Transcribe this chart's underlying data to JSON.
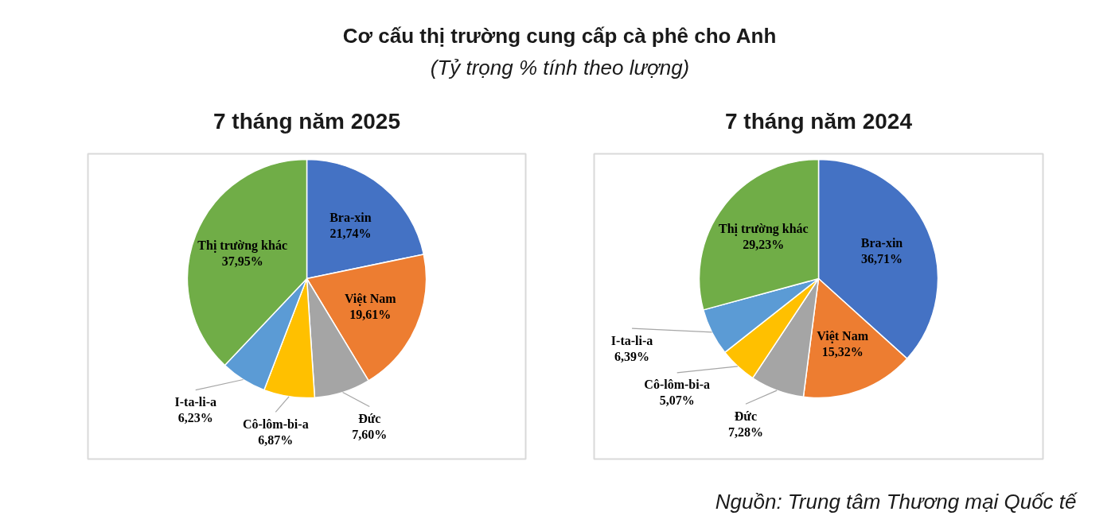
{
  "chart_data": [
    {
      "type": "other",
      "title": "Cơ cấu thị trường cung cấp cà phê cho Anh",
      "subtitle": "(Tỷ trọng % tính theo lượng)",
      "annotations": [
        "Nguồn: Trung tâm Thương mại Quốc tế"
      ]
    },
    {
      "type": "pie",
      "title": "7 tháng năm 2025",
      "categories": [
        "Bra-xin",
        "Việt Nam",
        "Đức",
        "Cô-lôm-bi-a",
        "I-ta-li-a",
        "Thị trường khác"
      ],
      "values": [
        21.74,
        19.61,
        7.6,
        6.87,
        6.23,
        37.95
      ],
      "colors": [
        "#4472c4",
        "#ed7d31",
        "#a5a5a5",
        "#ffc000",
        "#5b9bd5",
        "#70ad47"
      ],
      "value_labels": [
        "21,74%",
        "19,61%",
        "7,60%",
        "6,87%",
        "6,23%",
        "37,95%"
      ]
    },
    {
      "type": "pie",
      "title": "7 tháng năm 2024",
      "categories": [
        "Bra-xin",
        "Việt Nam",
        "Đức",
        "Cô-lôm-bi-a",
        "I-ta-li-a",
        "Thị trường khác"
      ],
      "values": [
        36.71,
        15.32,
        7.28,
        5.07,
        6.39,
        29.23
      ],
      "colors": [
        "#4472c4",
        "#ed7d31",
        "#a5a5a5",
        "#ffc000",
        "#5b9bd5",
        "#70ad47"
      ],
      "value_labels": [
        "36,71%",
        "15,32%",
        "7,28%",
        "5,07%",
        "6,39%",
        "29,23%"
      ]
    }
  ]
}
